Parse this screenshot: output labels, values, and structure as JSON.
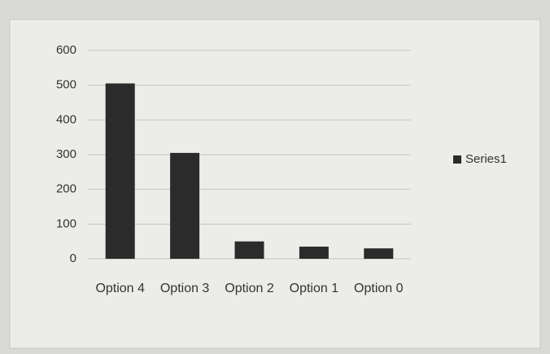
{
  "chart_data": {
    "type": "bar",
    "categories": [
      "Option 4",
      "Option 3",
      "Option 2",
      "Option 1",
      "Option 0"
    ],
    "series": [
      {
        "name": "Series1",
        "color": "#2b2b2b",
        "values": [
          505,
          305,
          50,
          35,
          30
        ]
      }
    ],
    "ylim": [
      0,
      600
    ],
    "yticks": [
      0,
      100,
      200,
      300,
      400,
      500,
      600
    ],
    "grid": true,
    "legend": "right"
  }
}
